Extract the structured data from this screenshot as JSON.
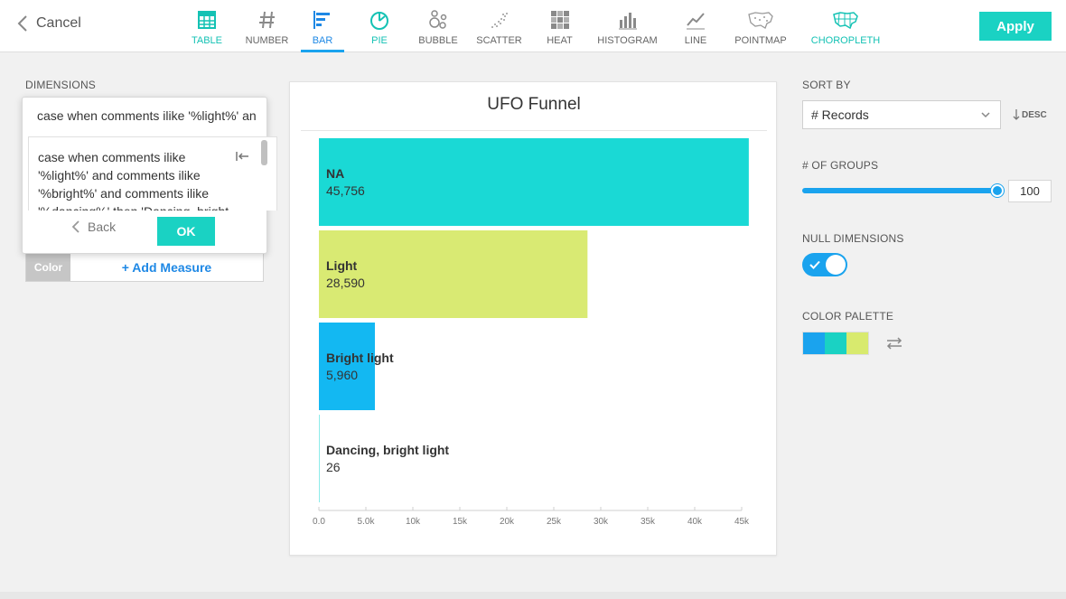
{
  "header": {
    "cancel_label": "Cancel",
    "apply_label": "Apply",
    "viz_types": [
      {
        "label": "TABLE",
        "icon": "table-icon"
      },
      {
        "label": "NUMBER",
        "icon": "hash-icon"
      },
      {
        "label": "BAR",
        "icon": "bar-chart-icon",
        "active": true
      },
      {
        "label": "PIE",
        "icon": "pie-chart-icon"
      },
      {
        "label": "BUBBLE",
        "icon": "bubble-chart-icon"
      },
      {
        "label": "SCATTER",
        "icon": "scatter-chart-icon"
      },
      {
        "label": "HEAT",
        "icon": "heatmap-icon"
      },
      {
        "label": "HISTOGRAM",
        "icon": "histogram-icon"
      },
      {
        "label": "LINE",
        "icon": "line-chart-icon"
      },
      {
        "label": "POINTMAP",
        "icon": "pointmap-icon"
      },
      {
        "label": "CHOROPLETH",
        "icon": "choropleth-icon"
      }
    ]
  },
  "left": {
    "dimensions_label": "DIMENSIONS",
    "dimension_value": "case when comments ilike '%light%' and",
    "editor_lines": [
      "case when comments ilike",
      "'%light%' and comments ilike",
      "'%bright%' and comments ilike",
      "'%dancing%' then 'Dancing, bright"
    ],
    "back_label": "Back",
    "ok_label": "OK",
    "color_label": "Color",
    "add_measure_label": "+ Add Measure"
  },
  "right": {
    "sort_by_label": "SORT BY",
    "sort_value": "# Records",
    "desc_label": "DESC",
    "groups_label": "# OF GROUPS",
    "groups_value": "100",
    "groups_level": 1.0,
    "null_dimensions_label": "NULL DIMENSIONS",
    "null_dimensions_on": true,
    "color_palette_label": "COLOR PALETTE",
    "palette_colors": [
      "#1aa3ee",
      "#1ad2c3",
      "#d8ea6e"
    ]
  },
  "chart_data": {
    "type": "bar",
    "orientation": "horizontal",
    "title": "UFO Funnel",
    "categories": [
      "NA",
      "Light",
      "Bright light",
      "Dancing, bright light"
    ],
    "values": [
      45756,
      28590,
      5960,
      26
    ],
    "value_labels": [
      "45,756",
      "28,590",
      "5,960",
      "26"
    ],
    "colors": [
      "#1ad9d5",
      "#d9ea73",
      "#13b8f2",
      "#1ad9d5"
    ],
    "xlim": [
      0,
      45000
    ],
    "x_ticks": [
      0,
      5000,
      10000,
      15000,
      20000,
      25000,
      30000,
      35000,
      40000,
      45000
    ],
    "x_tick_labels": [
      "0.0",
      "5.0k",
      "10k",
      "15k",
      "20k",
      "25k",
      "30k",
      "35k",
      "40k",
      "45k"
    ],
    "grid": false,
    "legend": "none"
  }
}
